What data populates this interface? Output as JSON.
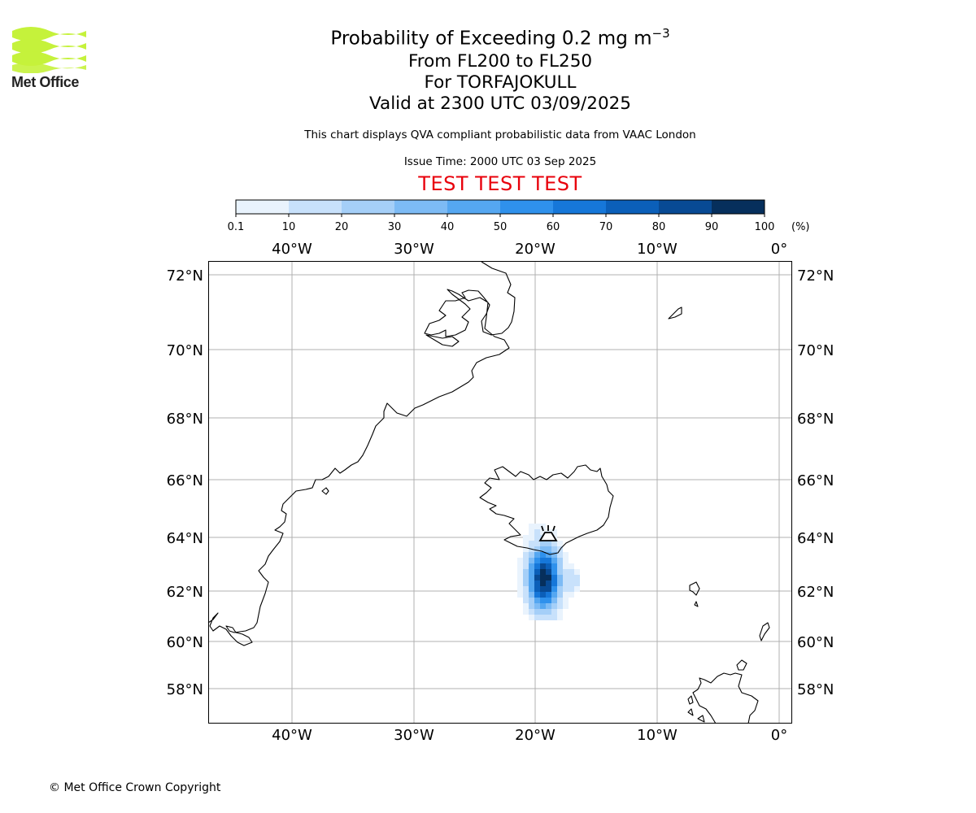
{
  "logo": {
    "text": "Met Office",
    "color": "#c5f23b"
  },
  "title": {
    "main_prefix": "Probability of Exceeding 0.2 mg m",
    "main_exponent": "−3",
    "levels": "From FL200 to FL250",
    "volcano": "For TORFAJOKULL",
    "valid": "Valid at 2300 UTC 03/09/2025"
  },
  "disclaimer": "This chart displays QVA compliant probabilistic data from VAAC London",
  "issue_time": "Issue Time: 2000 UTC 03 Sep 2025",
  "test_banner": "TEST TEST TEST",
  "test_color": "#e8000b",
  "copyright": "© Met Office Crown Copyright",
  "colorbar": {
    "ticks": [
      "0.1",
      "10",
      "20",
      "30",
      "40",
      "50",
      "60",
      "70",
      "80",
      "90",
      "100"
    ],
    "unit": "(%)",
    "colors": [
      "#e9f3fd",
      "#c8e1fb",
      "#a5cff8",
      "#7dbbf5",
      "#55a7f1",
      "#2f91ec",
      "#1677d9",
      "#0b5fb9",
      "#084a94",
      "#062f5c"
    ]
  },
  "map": {
    "lon_labels": [
      "40°W",
      "30°W",
      "20°W",
      "10°W",
      "0°"
    ],
    "lat_labels": [
      "72°N",
      "70°N",
      "68°N",
      "66°N",
      "64°N",
      "62°N",
      "60°N",
      "58°N"
    ],
    "volcano_icon": "volcano-icon"
  }
}
